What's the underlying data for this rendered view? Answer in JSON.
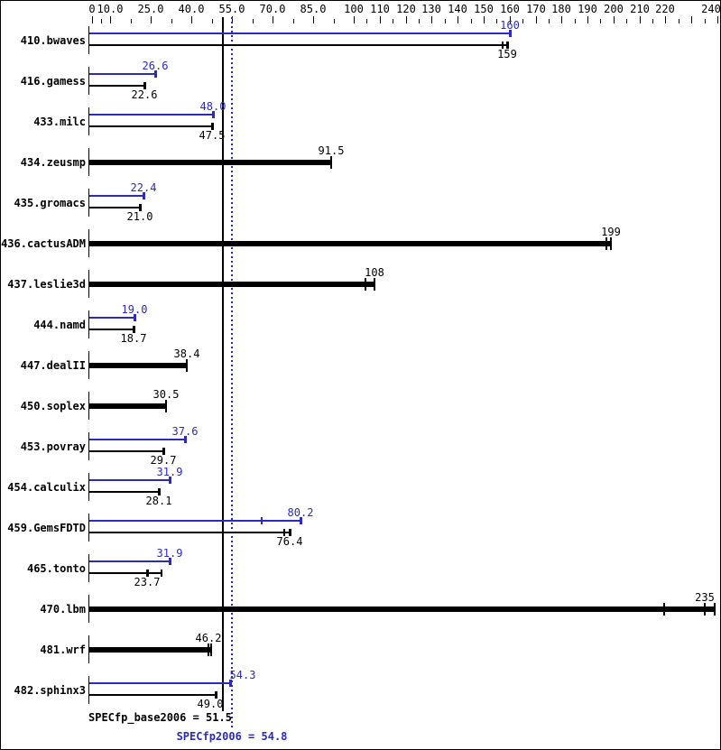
{
  "colors": {
    "peak_blue": "#2b2bbe",
    "base_black": "#000000",
    "background": "#ffffff",
    "border": "#000000"
  },
  "means": {
    "base": {
      "value": 51.5,
      "text": "SPECfp_base2006 = 51.5"
    },
    "peak": {
      "value": 54.8,
      "text": "SPECfp2006 = 54.8"
    }
  },
  "chart_data": {
    "type": "bar",
    "orientation": "horizontal",
    "title": "",
    "xlabel": "",
    "ylabel": "",
    "x_axis": {
      "range": [
        0,
        240
      ],
      "tick_values": [
        0,
        10,
        25,
        40,
        55,
        70,
        85,
        100,
        110,
        120,
        130,
        140,
        150,
        160,
        170,
        180,
        190,
        200,
        210,
        220,
        230,
        240
      ],
      "tick_labels": [
        "0",
        "10.0",
        "25.0",
        "40.0",
        "55.0",
        "70.0",
        "85.0",
        "100",
        "110",
        "120",
        "130",
        "140",
        "150",
        "160",
        "170",
        "180",
        "190",
        "200",
        "210",
        "220",
        "",
        "240"
      ],
      "minor_ticks": "midway-between-majors"
    },
    "series_names": [
      "peak",
      "base"
    ],
    "benchmarks": [
      {
        "name": "410.bwaves",
        "peak": {
          "value": 160,
          "label": "160"
        },
        "base": {
          "value": 159,
          "label": "159",
          "ticks": [
            157
          ]
        }
      },
      {
        "name": "416.gamess",
        "peak": {
          "value": 26.6,
          "label": "26.6"
        },
        "base": {
          "value": 22.6,
          "label": "22.6"
        }
      },
      {
        "name": "433.milc",
        "peak": {
          "value": 48.0,
          "label": "48.0"
        },
        "base": {
          "value": 47.5,
          "label": "47.5"
        }
      },
      {
        "name": "434.zeusmp",
        "peak": null,
        "base": {
          "value": 91.5,
          "label": "91.5"
        }
      },
      {
        "name": "435.gromacs",
        "peak": {
          "value": 22.4,
          "label": "22.4"
        },
        "base": {
          "value": 21.0,
          "label": "21.0"
        }
      },
      {
        "name": "436.cactusADM",
        "peak": null,
        "base": {
          "value": 199,
          "label": "199",
          "ticks": [
            197
          ]
        }
      },
      {
        "name": "437.leslie3d",
        "peak": null,
        "base": {
          "value": 108,
          "label": "108",
          "ticks": [
            104
          ]
        }
      },
      {
        "name": "444.namd",
        "peak": {
          "value": 19.0,
          "label": "19.0"
        },
        "base": {
          "value": 18.7,
          "label": "18.7"
        }
      },
      {
        "name": "447.dealII",
        "peak": null,
        "base": {
          "value": 38.4,
          "label": "38.4"
        }
      },
      {
        "name": "450.soplex",
        "peak": null,
        "base": {
          "value": 30.5,
          "label": "30.5"
        }
      },
      {
        "name": "453.povray",
        "peak": {
          "value": 37.6,
          "label": "37.6"
        },
        "base": {
          "value": 29.7,
          "label": "29.7"
        }
      },
      {
        "name": "454.calculix",
        "peak": {
          "value": 31.9,
          "label": "31.9"
        },
        "base": {
          "value": 28.1,
          "label": "28.1"
        }
      },
      {
        "name": "459.GemsFDTD",
        "peak": {
          "value": 80.2,
          "label": "80.2",
          "ticks": [
            65.5
          ]
        },
        "base": {
          "value": 76.4,
          "label": "76.4",
          "ticks": [
            74
          ]
        }
      },
      {
        "name": "465.tonto",
        "peak": {
          "value": 31.9,
          "label": "31.9"
        },
        "base": {
          "value": 23.7,
          "label": "23.7",
          "ticks": [
            28.5
          ]
        }
      },
      {
        "name": "470.lbm",
        "peak": null,
        "base": {
          "value": 235,
          "label": "235",
          "ticks": [
            219,
            238.5
          ]
        }
      },
      {
        "name": "481.wrf",
        "peak": null,
        "base": {
          "value": 46.2,
          "label": "46.2",
          "ticks": [
            47
          ]
        }
      },
      {
        "name": "482.sphinx3",
        "peak": {
          "value": 54.3,
          "label": "54.3",
          "label_dx": 14
        },
        "base": {
          "value": 49.0,
          "label": "49.0",
          "label_dx": -6
        }
      }
    ]
  }
}
